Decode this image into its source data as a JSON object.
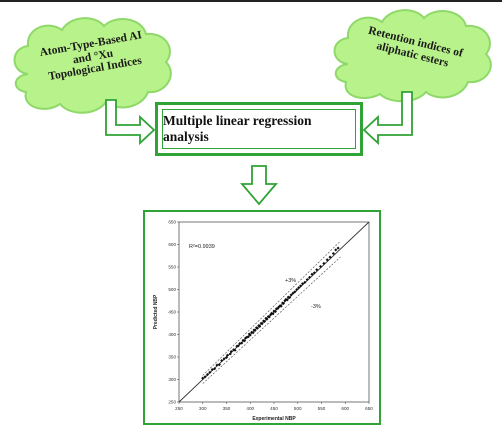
{
  "clouds": {
    "left": {
      "line1": "Atom-Type-Based AI",
      "line2": "and °Xu",
      "line3": "Topological Indices"
    },
    "right": {
      "line1": "Retention indices of",
      "line2": "aliphatic esters"
    }
  },
  "center_box": {
    "label": "Multiple linear regression analysis"
  },
  "colors": {
    "accent": "#2fa336",
    "cloud_fill": "#b8f28a",
    "cloud_stroke": "#8fd86a",
    "arrow_fill": "#ffffff"
  },
  "chart_data": {
    "type": "scatter",
    "title": "",
    "xlabel": "Experimental NBP",
    "ylabel": "Predicted NBP",
    "xlim": [
      250,
      650
    ],
    "ylim": [
      250,
      650
    ],
    "xticks": [
      "250",
      "300",
      "350",
      "400",
      "450",
      "500",
      "550",
      "600",
      "650"
    ],
    "yticks": [
      "250",
      "300",
      "350",
      "400",
      "450",
      "500",
      "550",
      "600",
      "650"
    ],
    "annotations": {
      "r2": "R²=0.9939",
      "plus": "+3%",
      "minus": "-3%"
    },
    "identity_line": [
      [
        250,
        250
      ],
      [
        650,
        650
      ]
    ],
    "bands_percent": 3,
    "grid": false,
    "points": [
      [
        300,
        303
      ],
      [
        305,
        306
      ],
      [
        310,
        311
      ],
      [
        315,
        316
      ],
      [
        320,
        322
      ],
      [
        325,
        324
      ],
      [
        330,
        332
      ],
      [
        335,
        333
      ],
      [
        340,
        342
      ],
      [
        345,
        346
      ],
      [
        350,
        349
      ],
      [
        352,
        354
      ],
      [
        358,
        357
      ],
      [
        360,
        362
      ],
      [
        365,
        366
      ],
      [
        368,
        365
      ],
      [
        372,
        374
      ],
      [
        375,
        375
      ],
      [
        378,
        380
      ],
      [
        382,
        381
      ],
      [
        385,
        387
      ],
      [
        388,
        386
      ],
      [
        390,
        392
      ],
      [
        393,
        394
      ],
      [
        396,
        395
      ],
      [
        398,
        401
      ],
      [
        400,
        399
      ],
      [
        403,
        405
      ],
      [
        406,
        404
      ],
      [
        408,
        410
      ],
      [
        410,
        409
      ],
      [
        413,
        415
      ],
      [
        415,
        414
      ],
      [
        418,
        420
      ],
      [
        420,
        418
      ],
      [
        423,
        425
      ],
      [
        425,
        424
      ],
      [
        428,
        430
      ],
      [
        430,
        429
      ],
      [
        433,
        436
      ],
      [
        435,
        434
      ],
      [
        438,
        440
      ],
      [
        440,
        439
      ],
      [
        443,
        444
      ],
      [
        445,
        447
      ],
      [
        448,
        446
      ],
      [
        450,
        452
      ],
      [
        453,
        451
      ],
      [
        455,
        457
      ],
      [
        458,
        458
      ],
      [
        460,
        461
      ],
      [
        463,
        464
      ],
      [
        465,
        463
      ],
      [
        468,
        470
      ],
      [
        470,
        469
      ],
      [
        473,
        475
      ],
      [
        475,
        478
      ],
      [
        478,
        477
      ],
      [
        480,
        483
      ],
      [
        483,
        482
      ],
      [
        486,
        488
      ],
      [
        490,
        492
      ],
      [
        494,
        495
      ],
      [
        498,
        500
      ],
      [
        502,
        504
      ],
      [
        506,
        508
      ],
      [
        510,
        513
      ],
      [
        515,
        516
      ],
      [
        520,
        522
      ],
      [
        525,
        527
      ],
      [
        530,
        534
      ],
      [
        535,
        537
      ],
      [
        540,
        544
      ],
      [
        548,
        551
      ],
      [
        555,
        558
      ],
      [
        562,
        566
      ],
      [
        568,
        572
      ],
      [
        575,
        580
      ],
      [
        580,
        588
      ],
      [
        585,
        592
      ]
    ]
  }
}
